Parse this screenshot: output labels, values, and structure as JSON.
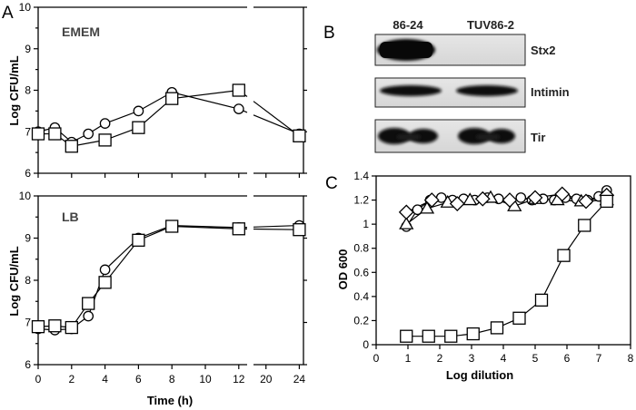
{
  "labels": {
    "panel_a": "A",
    "panel_b": "B",
    "panel_c": "C"
  },
  "chart_data": [
    {
      "id": "A-top",
      "type": "line",
      "subtitle": "EMEM",
      "ylabel": "Log CFU/mL",
      "xlabel": "",
      "ylim": [
        6,
        10
      ],
      "yticks": [
        "6",
        "7",
        "8",
        "9",
        "10"
      ],
      "xlim_left": [
        0,
        12.5
      ],
      "xlim_right": [
        18.5,
        24.5
      ],
      "xticks_left": [
        0,
        2,
        4,
        6,
        8,
        10,
        12
      ],
      "xticks_right": [
        20,
        24
      ],
      "series": [
        {
          "name": "86-24",
          "marker": "circle",
          "x": [
            0,
            1,
            2,
            3,
            4,
            6,
            8,
            12,
            24
          ],
          "y": [
            7.0,
            7.1,
            6.75,
            6.95,
            7.2,
            7.5,
            7.95,
            7.55,
            6.95
          ]
        },
        {
          "name": "TUV86-2",
          "marker": "square",
          "x": [
            0,
            1,
            2,
            4,
            6,
            8,
            12,
            24
          ],
          "y": [
            6.95,
            6.95,
            6.65,
            6.8,
            7.1,
            7.8,
            8.0,
            6.9
          ]
        }
      ]
    },
    {
      "id": "A-bottom",
      "type": "line",
      "subtitle": "LB",
      "ylabel": "Log CFU/mL",
      "xlabel": "Time (h)",
      "ylim": [
        6,
        10
      ],
      "yticks": [
        "6",
        "7",
        "8",
        "9",
        "10"
      ],
      "xlim_left": [
        0,
        12.5
      ],
      "xlim_right": [
        18.5,
        24.5
      ],
      "xticks_left": [
        0,
        2,
        4,
        6,
        8,
        10,
        12
      ],
      "xticks_right": [
        20,
        24
      ],
      "series": [
        {
          "name": "86-24",
          "marker": "circle",
          "x": [
            0,
            1,
            2,
            3,
            4,
            6,
            8,
            12,
            24
          ],
          "y": [
            6.85,
            6.82,
            6.85,
            7.15,
            8.25,
            9.0,
            9.3,
            9.25,
            9.3
          ]
        },
        {
          "name": "TUV86-2",
          "marker": "square",
          "x": [
            0,
            1,
            2,
            3,
            4,
            6,
            8,
            12,
            24
          ],
          "y": [
            6.9,
            6.92,
            6.88,
            7.45,
            7.95,
            8.95,
            9.28,
            9.22,
            9.2
          ]
        }
      ]
    },
    {
      "id": "C",
      "type": "line",
      "ylabel": "OD 600",
      "xlabel": "Log dilution",
      "xlim": [
        0,
        8
      ],
      "ylim": [
        0,
        1.4
      ],
      "xticks": [
        "0",
        "1",
        "2",
        "3",
        "4",
        "5",
        "6",
        "7",
        "8"
      ],
      "yticks": [
        "0",
        "0.2",
        "0.4",
        "0.6",
        "0.8",
        "1",
        "1.2",
        "1.4"
      ],
      "series": [
        {
          "name": "circle",
          "marker": "circle",
          "x": [
            0.95,
            1.3,
            1.7,
            2.05,
            2.4,
            2.75,
            3.1,
            3.5,
            3.85,
            4.2,
            4.55,
            4.9,
            5.25,
            5.6,
            5.95,
            6.3,
            6.65,
            7.0,
            7.25
          ],
          "y": [
            0.98,
            1.12,
            1.2,
            1.22,
            1.2,
            1.21,
            1.2,
            1.22,
            1.21,
            1.2,
            1.22,
            1.2,
            1.21,
            1.2,
            1.22,
            1.21,
            1.2,
            1.23,
            1.28
          ]
        },
        {
          "name": "triangle",
          "marker": "triangle",
          "x": [
            0.95,
            1.6,
            2.25,
            2.95,
            3.6,
            4.35,
            5.0,
            5.7,
            6.45,
            7.25
          ],
          "y": [
            1.0,
            1.13,
            1.18,
            1.2,
            1.22,
            1.15,
            1.21,
            1.2,
            1.19,
            1.2
          ]
        },
        {
          "name": "diamond",
          "marker": "diamond",
          "x": [
            0.95,
            1.75,
            2.55,
            3.35,
            4.2,
            5.0,
            5.85,
            6.6,
            7.25
          ],
          "y": [
            1.1,
            1.2,
            1.17,
            1.21,
            1.2,
            1.22,
            1.25,
            1.19,
            1.24
          ]
        },
        {
          "name": "square",
          "marker": "square",
          "x": [
            0.95,
            1.65,
            2.35,
            3.05,
            3.8,
            4.5,
            5.2,
            5.9,
            6.55,
            7.25
          ],
          "y": [
            0.07,
            0.07,
            0.07,
            0.09,
            0.14,
            0.22,
            0.37,
            0.74,
            0.99,
            1.19
          ]
        }
      ]
    }
  ],
  "blot": {
    "lanes": [
      "86-24",
      "TUV86-2"
    ],
    "rows": [
      {
        "label": "Stx2",
        "bands": [
          1,
          0
        ]
      },
      {
        "label": "Intimin",
        "bands": [
          1,
          1
        ]
      },
      {
        "label": "Tir",
        "bands": [
          1,
          1
        ]
      }
    ]
  }
}
